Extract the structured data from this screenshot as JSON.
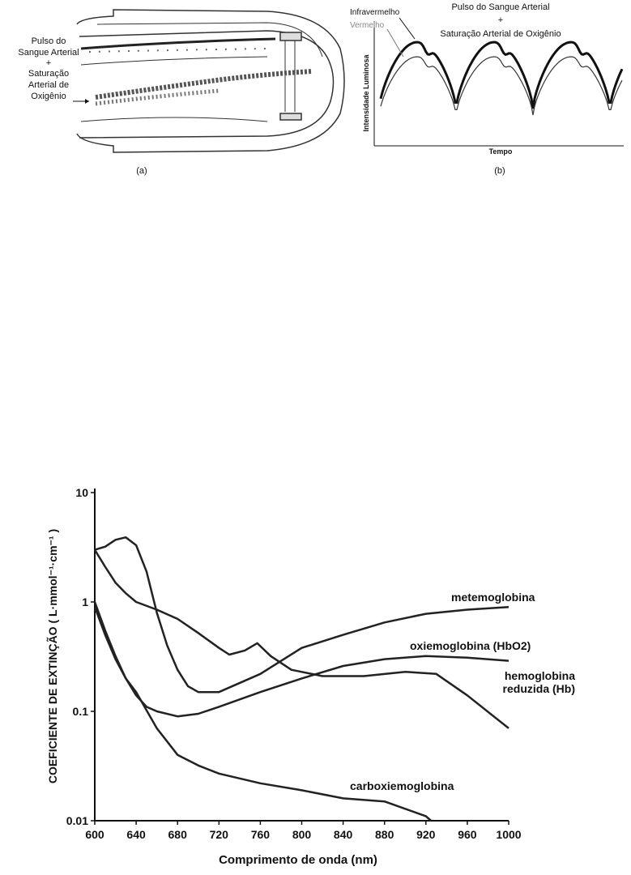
{
  "figure_a": {
    "labels": [
      "Pulso do",
      "Sangue Arterial",
      "+",
      "Saturação",
      "Arterial  de",
      "Oxigênio"
    ],
    "caption": "(a)"
  },
  "figure_b": {
    "title": [
      "Pulso do Sangue Arterial",
      "+",
      "Saturação Arterial de Oxigênio"
    ],
    "infrared": "Infravermelho",
    "red": "Vermelho",
    "ylabel": "Intensidade Luminosa",
    "xlabel": "Tempo",
    "caption": "(b)"
  },
  "chart_data": {
    "type": "line",
    "xlabel": "Comprimento de onda (nm)",
    "ylabel": "COEFICIENTE DE EXTINÇÃO ( L·mmol⁻¹·cm⁻¹ )",
    "ylog": true,
    "xlim": [
      600,
      1000
    ],
    "ylim": [
      0.01,
      10
    ],
    "xticks": [
      600,
      640,
      680,
      720,
      760,
      800,
      840,
      880,
      920,
      960,
      1000
    ],
    "yticks": [
      0.01,
      0.1,
      1,
      10
    ],
    "grid": false,
    "series": [
      {
        "name": "metemoglobina",
        "color": "#222222",
        "x": [
          600,
          610,
          620,
          630,
          640,
          650,
          660,
          670,
          680,
          690,
          700,
          720,
          760,
          800,
          840,
          880,
          920,
          960,
          1000
        ],
        "values": [
          3.0,
          3.2,
          3.7,
          3.9,
          3.3,
          1.9,
          0.8,
          0.4,
          0.24,
          0.17,
          0.15,
          0.15,
          0.22,
          0.38,
          0.5,
          0.65,
          0.78,
          0.85,
          0.9
        ]
      },
      {
        "name": "oxiemoglobina (HbO2)",
        "color": "#222222",
        "x": [
          600,
          610,
          620,
          630,
          640,
          650,
          660,
          680,
          700,
          720,
          760,
          800,
          840,
          880,
          920,
          960,
          1000
        ],
        "values": [
          1.0,
          0.55,
          0.32,
          0.2,
          0.14,
          0.11,
          0.1,
          0.09,
          0.095,
          0.11,
          0.15,
          0.2,
          0.26,
          0.3,
          0.32,
          0.31,
          0.29
        ]
      },
      {
        "name": "hemoglobina reduzida (Hb)",
        "color": "#222222",
        "x": [
          600,
          610,
          620,
          630,
          640,
          660,
          680,
          700,
          720,
          730,
          745,
          757,
          770,
          790,
          820,
          860,
          900,
          930,
          960,
          1000
        ],
        "values": [
          3.0,
          2.1,
          1.5,
          1.2,
          1.0,
          0.85,
          0.7,
          0.52,
          0.38,
          0.33,
          0.36,
          0.42,
          0.32,
          0.24,
          0.21,
          0.21,
          0.23,
          0.22,
          0.14,
          0.07
        ]
      },
      {
        "name": "carboxiemoglobina",
        "color": "#222222",
        "x": [
          600,
          610,
          620,
          630,
          640,
          660,
          680,
          700,
          720,
          760,
          800,
          840,
          880,
          920,
          925
        ],
        "values": [
          0.9,
          0.5,
          0.3,
          0.2,
          0.15,
          0.07,
          0.04,
          0.032,
          0.027,
          0.022,
          0.019,
          0.016,
          0.015,
          0.011,
          0.01
        ]
      }
    ]
  }
}
